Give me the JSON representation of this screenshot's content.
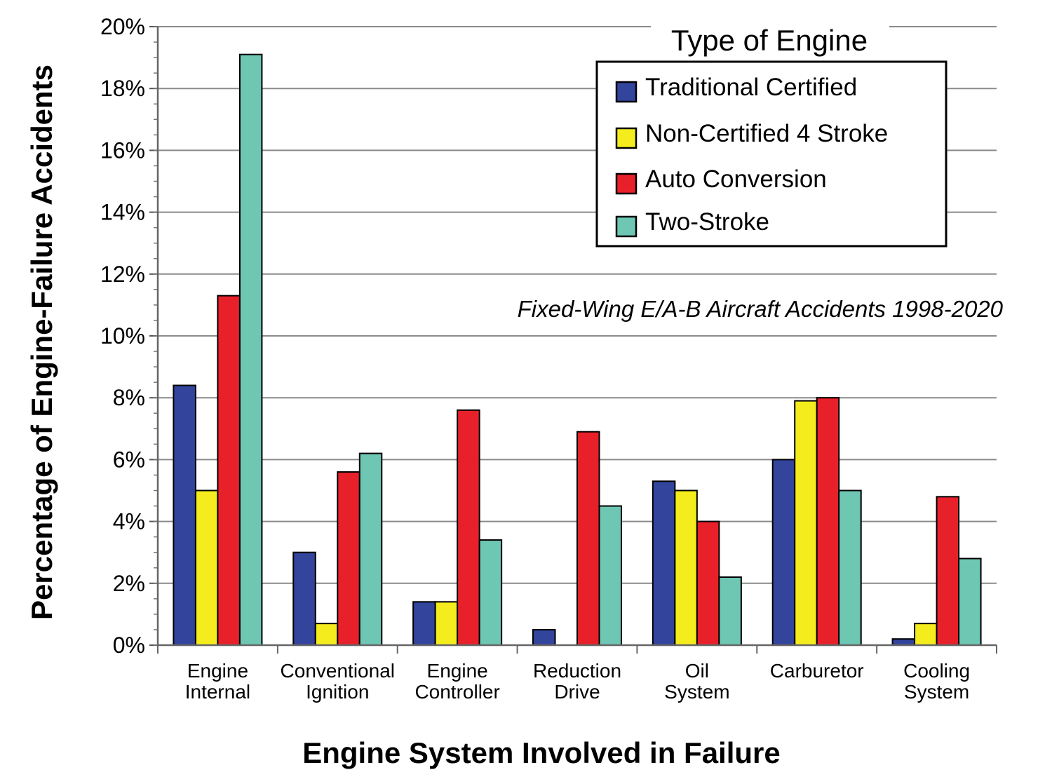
{
  "chart_data": {
    "type": "bar",
    "title": "",
    "xlabel": "Engine System Involved in Failure",
    "ylabel": "Percentage of Engine-Failure Accidents",
    "ylim": [
      0,
      20
    ],
    "y_tick_step": 2,
    "y_tick_suffix": "%",
    "grid": true,
    "annotation": "Fixed-Wing E/A-B Aircraft Accidents 1998-2020",
    "legend": {
      "title": "Type of Engine",
      "placement": "top-right"
    },
    "categories": [
      [
        "Engine",
        "Internal"
      ],
      [
        "Conventional",
        "Ignition"
      ],
      [
        "Engine",
        "Controller"
      ],
      [
        "Reduction",
        "Drive"
      ],
      [
        "Oil",
        "System"
      ],
      [
        "Carburetor"
      ],
      [
        "Cooling",
        "System"
      ]
    ],
    "series": [
      {
        "name": "Traditional Certified",
        "color": "#33449c",
        "values": [
          8.4,
          3.0,
          1.4,
          0.5,
          5.3,
          6.0,
          0.2
        ]
      },
      {
        "name": "Non-Certified 4 Stroke",
        "color": "#f5ec1e",
        "values": [
          5.0,
          0.7,
          1.4,
          0.0,
          5.0,
          7.9,
          0.7
        ]
      },
      {
        "name": "Auto Conversion",
        "color": "#e8202a",
        "values": [
          11.3,
          5.6,
          7.6,
          6.9,
          4.0,
          8.0,
          4.8
        ]
      },
      {
        "name": "Two-Stroke",
        "color": "#6ec7b3",
        "values": [
          19.1,
          6.2,
          3.4,
          4.5,
          2.2,
          5.0,
          2.8
        ]
      }
    ]
  }
}
